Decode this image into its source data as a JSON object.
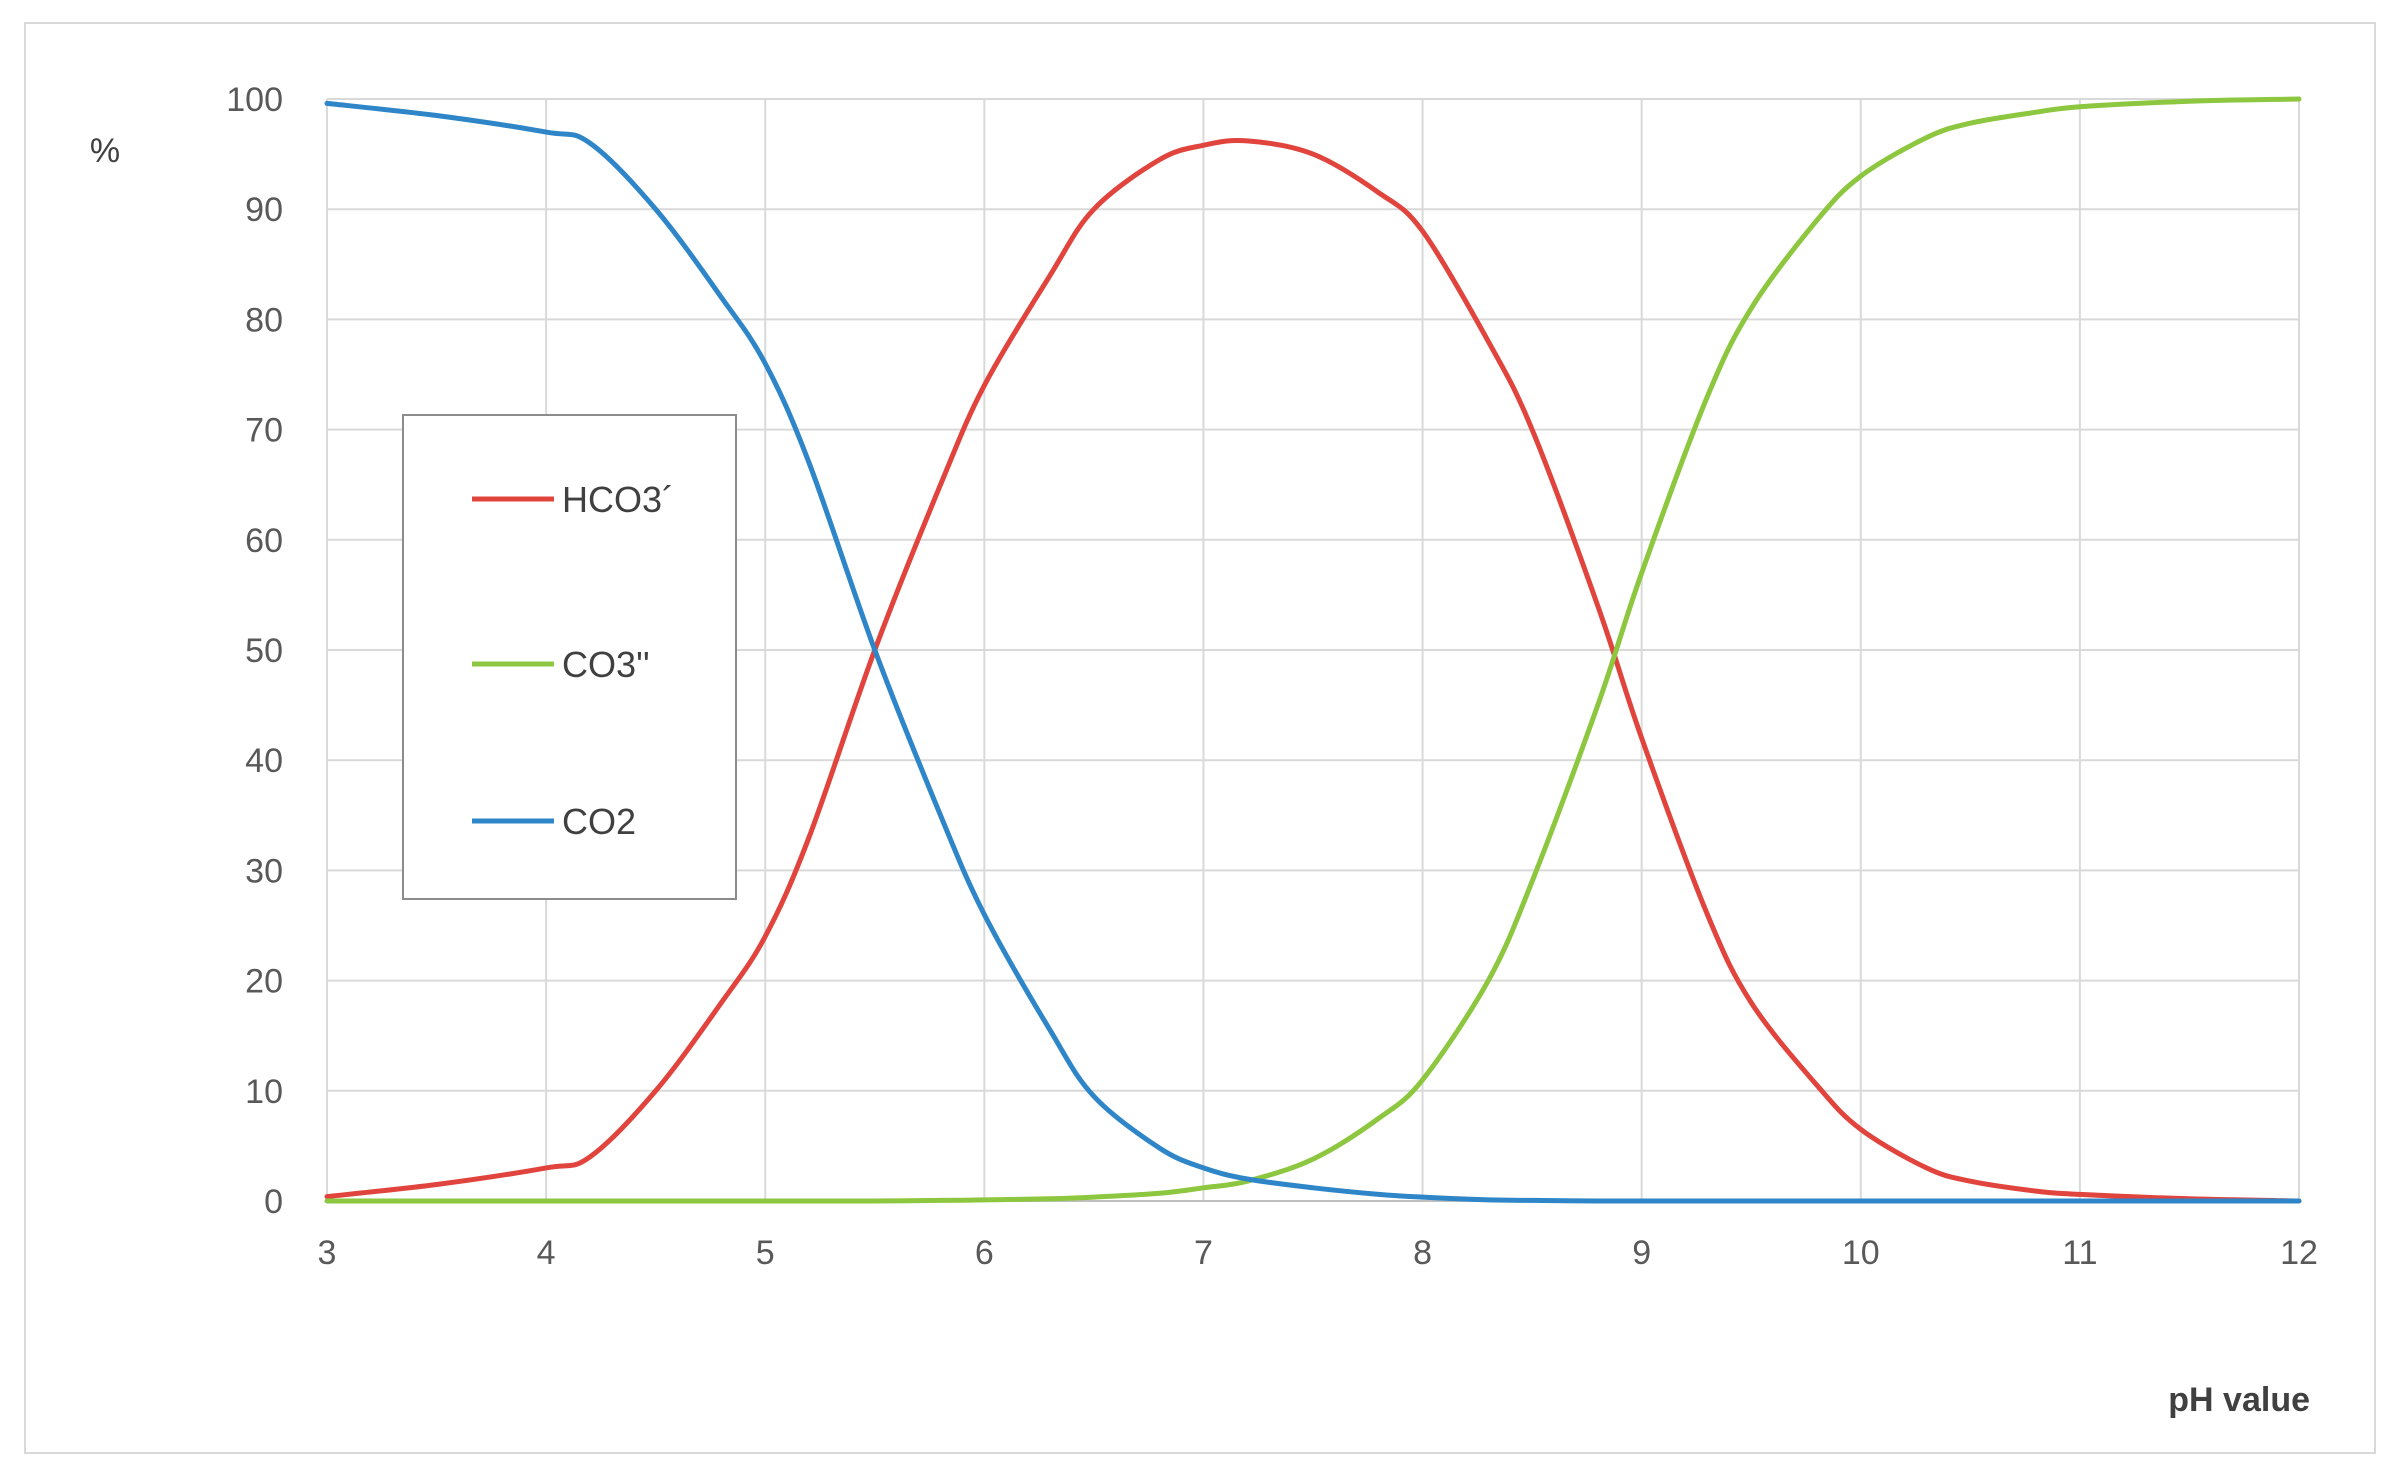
{
  "chart_data": {
    "type": "line",
    "title": "",
    "xlabel": "pH value",
    "ylabel": "%",
    "xlim": [
      3,
      12
    ],
    "ylim": [
      0,
      100
    ],
    "xticks": [
      "3",
      "4",
      "5",
      "6",
      "7",
      "8",
      "9",
      "10",
      "11",
      "12"
    ],
    "yticks": [
      "0",
      "10",
      "20",
      "30",
      "40",
      "50",
      "60",
      "70",
      "80",
      "90",
      "100"
    ],
    "grid": true,
    "legend_position": "left",
    "x": [
      3.0,
      3.5,
      4.0,
      4.2,
      4.5,
      4.8,
      5.0,
      5.2,
      5.5,
      5.8,
      6.0,
      6.3,
      6.5,
      6.8,
      7.0,
      7.2,
      7.5,
      7.8,
      8.0,
      8.3,
      8.5,
      8.8,
      9.0,
      9.3,
      9.5,
      9.8,
      10.0,
      10.3,
      10.5,
      10.8,
      11.0,
      11.5,
      12.0
    ],
    "series": [
      {
        "name": "HCO3´",
        "color": "#e0443d",
        "values": [
          0.4,
          1.5,
          3.0,
          4.0,
          10.0,
          18.0,
          24.0,
          33.0,
          50.0,
          65.0,
          74.0,
          84.0,
          90.0,
          94.5,
          95.8,
          96.2,
          95.0,
          91.5,
          88.0,
          78.0,
          70.0,
          54.0,
          42.0,
          26.0,
          18.0,
          10.5,
          6.5,
          3.0,
          1.8,
          0.9,
          0.6,
          0.2,
          0.0
        ]
      },
      {
        "name": "CO3''",
        "color": "#8dc63f",
        "values": [
          0.0,
          0.0,
          0.0,
          0.0,
          0.0,
          0.0,
          0.0,
          0.0,
          0.0,
          0.05,
          0.1,
          0.2,
          0.35,
          0.7,
          1.2,
          1.8,
          3.8,
          7.5,
          11.0,
          20.0,
          29.0,
          45.0,
          57.0,
          73.0,
          81.0,
          89.0,
          93.0,
          96.5,
          97.8,
          98.8,
          99.3,
          99.8,
          100.0
        ]
      },
      {
        "name": "CO2",
        "color": "#2e86c8",
        "values": [
          99.6,
          98.5,
          97.0,
          96.0,
          90.0,
          82.0,
          76.0,
          67.0,
          50.0,
          35.0,
          26.0,
          15.5,
          9.5,
          4.8,
          3.0,
          2.0,
          1.2,
          0.6,
          0.35,
          0.1,
          0.05,
          0.0,
          0.0,
          0.0,
          0.0,
          0.0,
          0.0,
          0.0,
          0.0,
          0.0,
          0.0,
          0.0,
          0.0
        ]
      }
    ]
  }
}
